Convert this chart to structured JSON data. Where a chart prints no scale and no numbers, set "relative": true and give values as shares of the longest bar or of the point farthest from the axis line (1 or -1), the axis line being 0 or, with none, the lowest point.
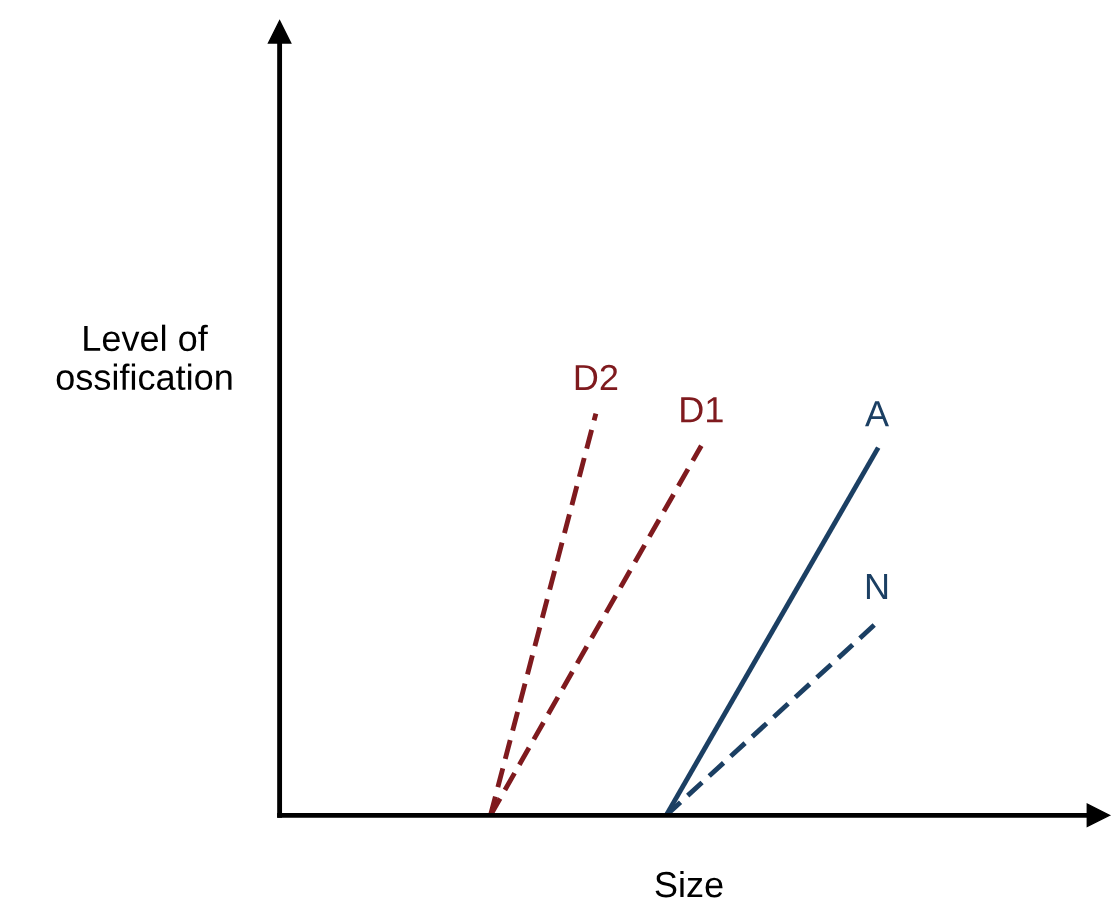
{
  "chart_data": {
    "type": "line",
    "relative": true,
    "xlabel": "Size",
    "ylabel": "Level of\nossification",
    "legend": false,
    "categories": [
      null,
      null,
      null,
      null,
      null,
      null,
      null,
      null,
      null,
      null,
      null,
      null,
      null,
      null,
      null,
      null,
      null,
      null,
      null,
      null,
      null,
      null,
      null,
      null
    ],
    "series": [
      {
        "name": "D2",
        "color": "#7f1a1e",
        "line_style": "dashed",
        "values": [
          null,
          null,
          null,
          null,
          null,
          null,
          0,
          null,
          null,
          1,
          null,
          null,
          null,
          null,
          null,
          null,
          null,
          null,
          null,
          null,
          null,
          null,
          null,
          null
        ]
      },
      {
        "name": "D1",
        "color": "#7f1a1e",
        "line_style": "dashed",
        "values": [
          null,
          null,
          null,
          null,
          null,
          null,
          0,
          null,
          null,
          null,
          null,
          null,
          0.92,
          null,
          null,
          null,
          null,
          null,
          null,
          null,
          null,
          null,
          null,
          null
        ]
      },
      {
        "name": "A",
        "color": "#1b3f63",
        "line_style": "solid",
        "values": [
          null,
          null,
          null,
          null,
          null,
          null,
          null,
          null,
          null,
          null,
          null,
          0,
          null,
          null,
          null,
          null,
          null,
          0.91,
          null,
          null,
          null,
          null,
          null,
          null
        ]
      },
      {
        "name": "N",
        "color": "#1b3f63",
        "line_style": "dashed",
        "values": [
          null,
          null,
          null,
          null,
          null,
          null,
          null,
          null,
          null,
          null,
          null,
          0,
          null,
          null,
          null,
          null,
          null,
          0.48,
          null,
          null,
          null,
          null,
          null,
          null
        ]
      }
    ]
  }
}
